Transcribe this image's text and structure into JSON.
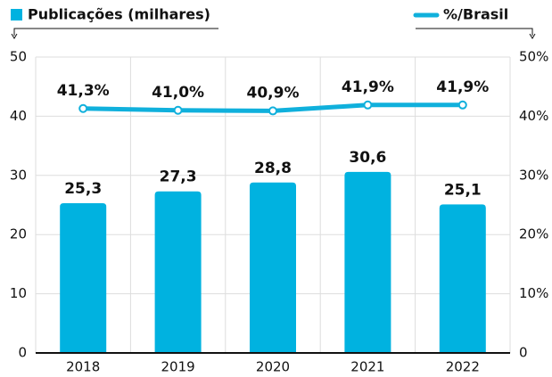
{
  "chart_data": {
    "type": "bar",
    "categories": [
      "2018",
      "2019",
      "2020",
      "2021",
      "2022"
    ],
    "series": [
      {
        "name": "Publicações (milhares)",
        "color": "#00b2e0",
        "type": "bar",
        "values": [
          25.3,
          27.3,
          28.8,
          30.6,
          25.1
        ],
        "value_labels": [
          "25,3",
          "27,3",
          "28,8",
          "30,6",
          "25,1"
        ]
      },
      {
        "name": "%/Brasil",
        "color": "#10b0dc",
        "type": "line",
        "axis": "y2",
        "values": [
          41.3,
          41.0,
          40.9,
          41.9,
          41.9
        ],
        "value_labels": [
          "41,3%",
          "41,0%",
          "40,9%",
          "41,9%",
          "41,9%"
        ]
      }
    ],
    "ylim": [
      0,
      50
    ],
    "yticks": [
      0,
      10,
      20,
      30,
      40,
      50
    ],
    "y2lim": [
      0,
      50
    ],
    "y2ticks": [
      0,
      {
        "value": 10,
        "label": "10%"
      },
      {
        "value": 20,
        "label": "20%"
      },
      {
        "value": 30,
        "label": "30%"
      },
      {
        "value": 40,
        "label": "40%"
      },
      {
        "value": 50,
        "label": "50%"
      }
    ],
    "grid": true
  }
}
